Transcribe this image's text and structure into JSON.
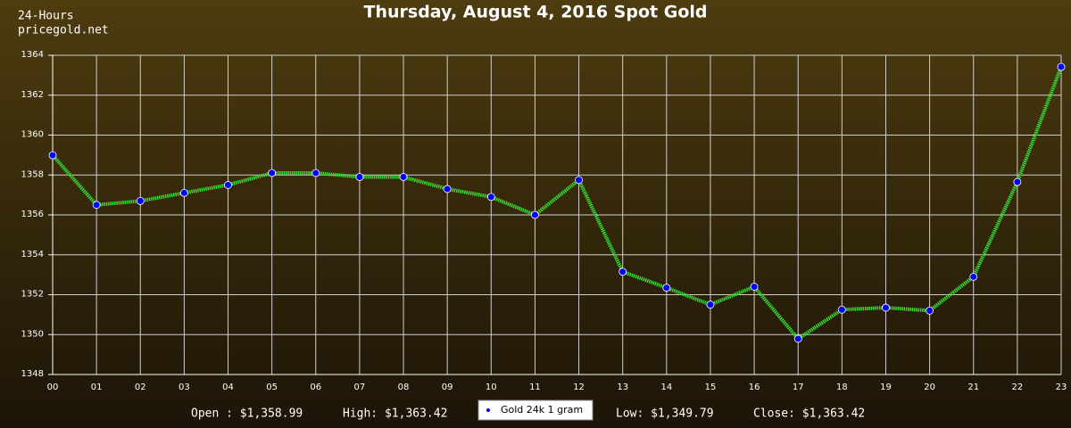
{
  "chart_data": {
    "type": "line",
    "title": "Thursday, August 4, 2016 Spot Gold",
    "corner_text": [
      "24-Hours",
      "pricegold.net"
    ],
    "categories": [
      "00",
      "01",
      "02",
      "03",
      "04",
      "05",
      "06",
      "07",
      "08",
      "09",
      "10",
      "11",
      "12",
      "13",
      "14",
      "15",
      "16",
      "17",
      "18",
      "19",
      "20",
      "21",
      "22",
      "23"
    ],
    "series": [
      {
        "name": "Gold 24k 1 gram",
        "color": "#33dd33",
        "marker_color": "#0000ff",
        "values": [
          1358.99,
          1356.5,
          1356.7,
          1357.1,
          1357.5,
          1358.1,
          1358.1,
          1357.9,
          1357.9,
          1357.3,
          1356.9,
          1356.0,
          1357.75,
          1353.15,
          1352.35,
          1351.5,
          1352.4,
          1349.79,
          1351.25,
          1351.35,
          1351.2,
          1352.9,
          1357.65,
          1363.42
        ]
      }
    ],
    "ylim": [
      1348,
      1364
    ],
    "yticks": [
      1348,
      1350,
      1352,
      1354,
      1356,
      1358,
      1360,
      1362,
      1364
    ],
    "grid": true,
    "stats": [
      "Open : $1,358.99",
      "High: $1,363.42",
      "Low: $1,349.79",
      "Close: $1,363.42"
    ]
  }
}
